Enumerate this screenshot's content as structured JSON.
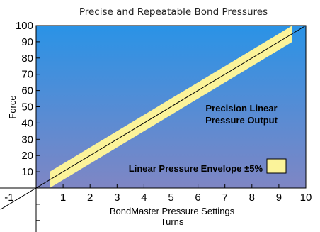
{
  "chart_data": {
    "type": "area",
    "title": "Precise and Repeatable Bond Pressures",
    "xlabel": "BondMaster Pressure Settings",
    "xlabel_sub": "Turns",
    "ylabel": "Force",
    "xlim": [
      0,
      10
    ],
    "ylim": [
      0,
      100
    ],
    "x_ticks": [
      "-1",
      "1",
      "2",
      "3",
      "4",
      "5",
      "6",
      "7",
      "8",
      "9",
      "10"
    ],
    "y_ticks": [
      "10",
      "20",
      "30",
      "40",
      "50",
      "60",
      "70",
      "80",
      "90",
      "100"
    ],
    "grid": false,
    "series": [
      {
        "name": "Linear Pressure Envelope ±5%",
        "x": [
          0.5,
          9.5
        ],
        "y": [
          5,
          95
        ],
        "band": 5
      }
    ],
    "annotations": {
      "output_line1": "Precision Linear",
      "output_line2": "Pressure Output",
      "legend_label": "Linear Pressure Envelope ±5%"
    },
    "colors": {
      "background_top": "#2a93e6",
      "background_bottom": "#7f86c4",
      "band": "#fbf39a"
    }
  }
}
